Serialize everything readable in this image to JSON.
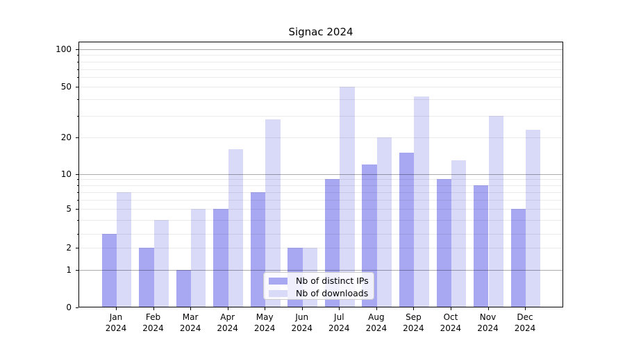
{
  "title": "Signac 2024",
  "legend": {
    "items": [
      {
        "label": "Nb of distinct IPs",
        "color": "#a8a8f2"
      },
      {
        "label": "Nb of downloads",
        "color": "#d9d9f8"
      }
    ]
  },
  "chart_data": {
    "type": "bar",
    "title": "Signac 2024",
    "categories": [
      "Jan 2024",
      "Feb 2024",
      "Mar 2024",
      "Apr 2024",
      "May 2024",
      "Jun 2024",
      "Jul 2024",
      "Aug 2024",
      "Sep 2024",
      "Oct 2024",
      "Nov 2024",
      "Dec 2024"
    ],
    "series": [
      {
        "name": "Nb of distinct IPs",
        "color": "#a8a8f2",
        "values": [
          3,
          2,
          1,
          5,
          7,
          2,
          9,
          12,
          15,
          9,
          8,
          5
        ]
      },
      {
        "name": "Nb of downloads",
        "color": "#d9d9f8",
        "values": [
          7,
          4,
          5,
          16,
          28,
          2,
          50,
          20,
          42,
          13,
          30,
          23
        ]
      }
    ],
    "xlabel": "",
    "ylabel": "",
    "yscale": "symlog-like",
    "yticks": [
      0,
      1,
      2,
      5,
      10,
      20,
      50,
      100
    ],
    "ylim": [
      0,
      110
    ],
    "grid": "horizontal, major dark at 1/10/100, faint minors, drawn above bars",
    "legend_position": "lower center inside plot"
  }
}
